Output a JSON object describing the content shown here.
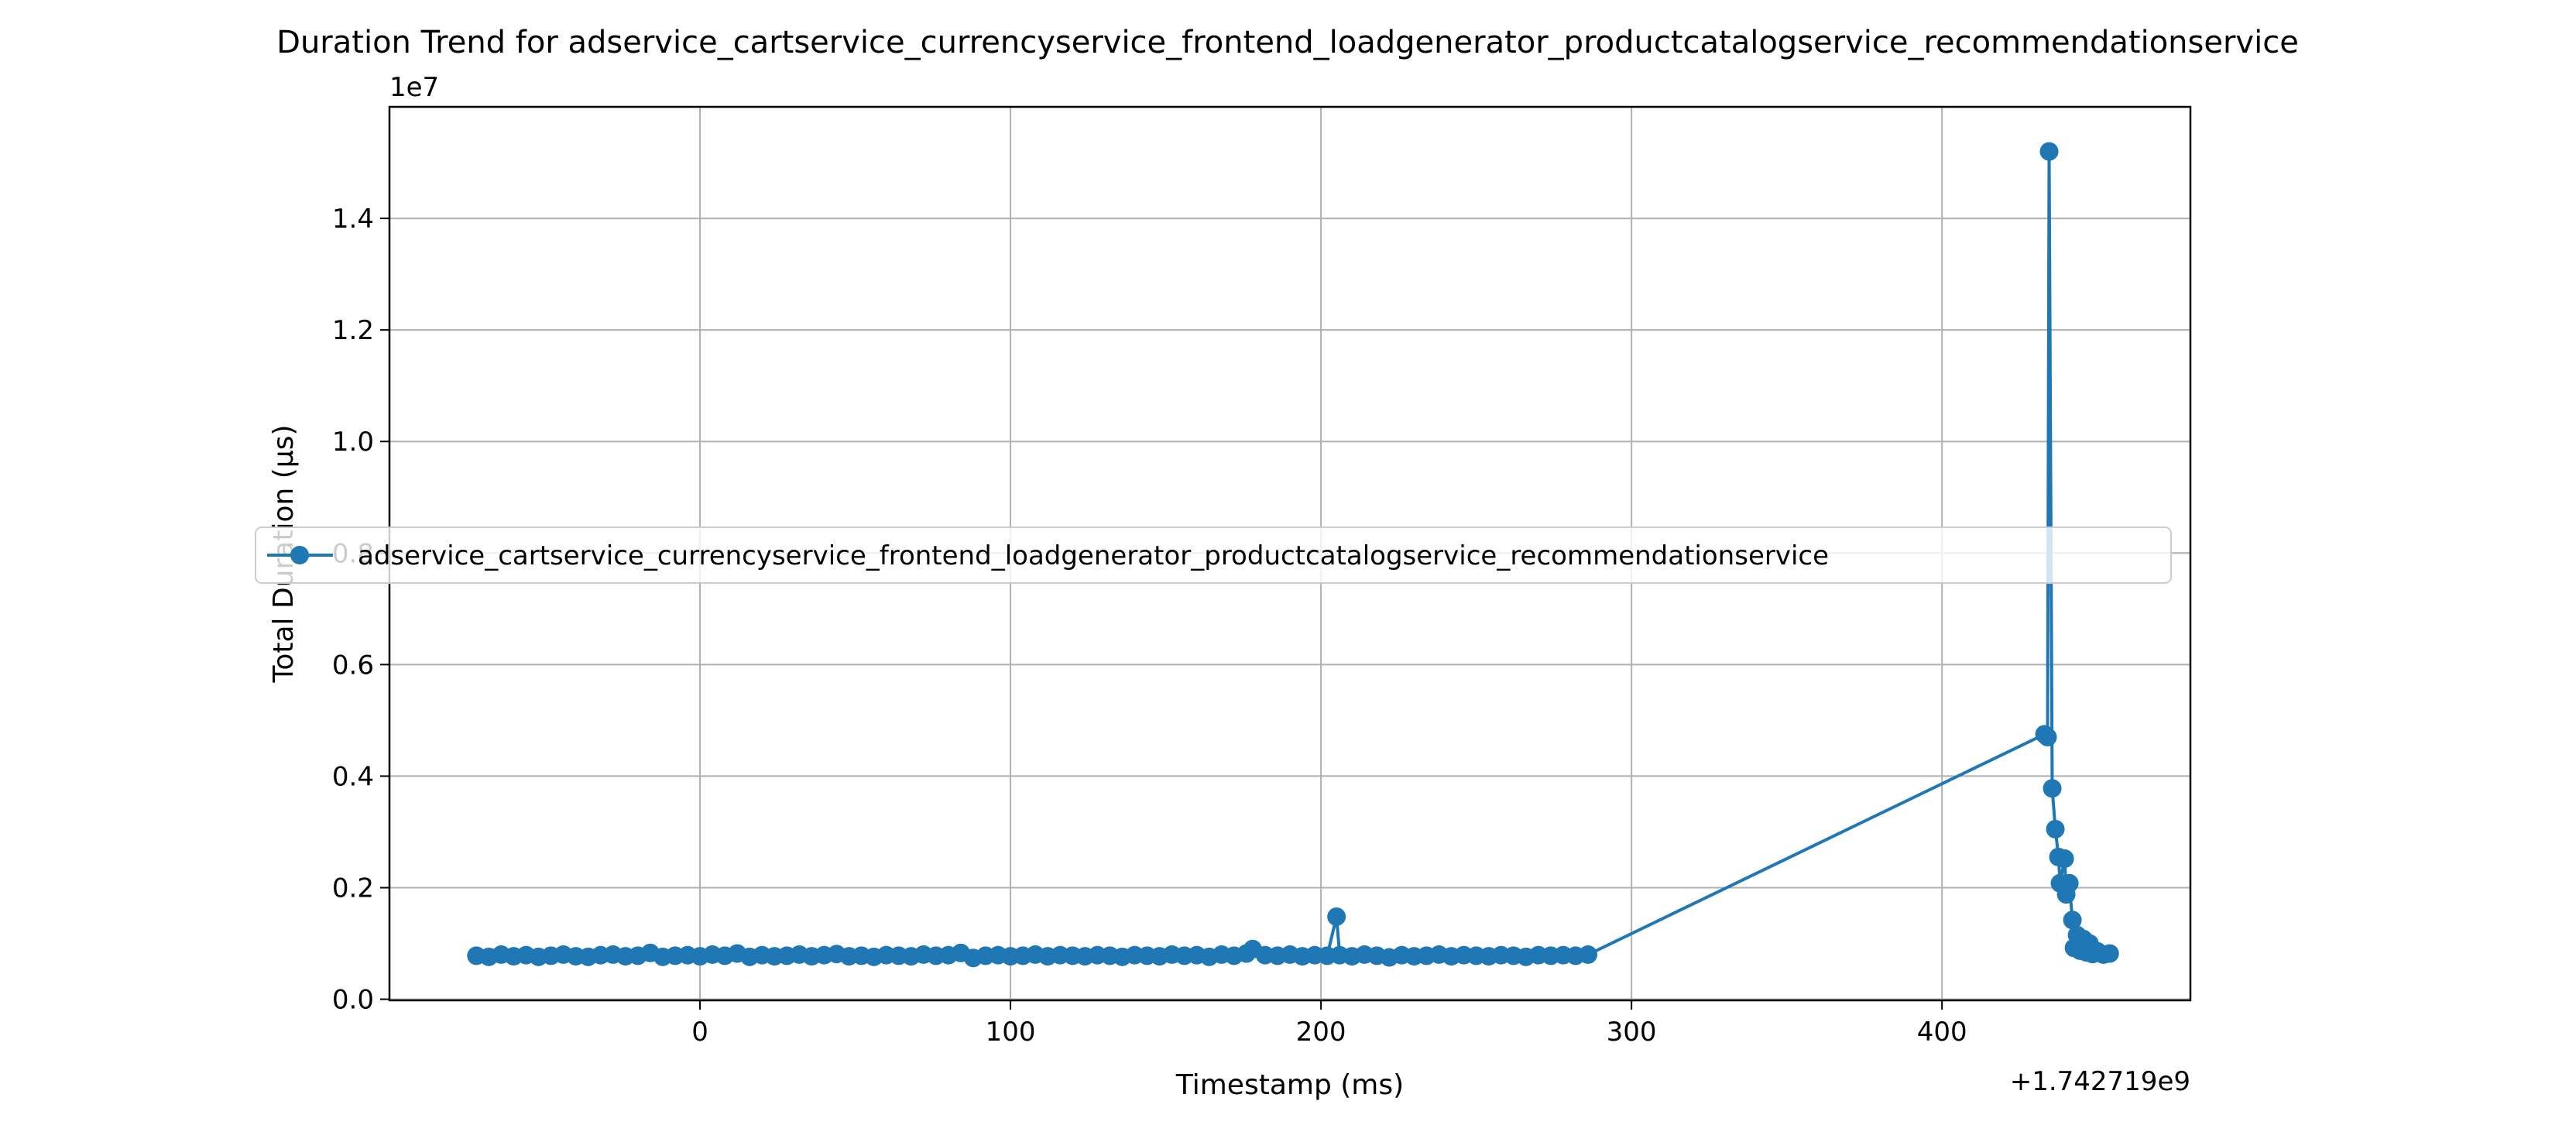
{
  "chart_data": {
    "type": "line",
    "title": "Duration Trend for adservice_cartservice_currencyservice_frontend_loadgenerator_productcatalogservice_recommendationservice",
    "xlabel": "Timestamp (ms)",
    "ylabel": "Total Duration (µs)",
    "y_scale_label": "1e7",
    "x_offset_label": "+1.742719e9",
    "x_ticks": [
      0,
      100,
      200,
      300,
      400
    ],
    "x_tick_labels": [
      "0",
      "100",
      "200",
      "300",
      "400"
    ],
    "y_ticks": [
      0,
      2000000,
      4000000,
      6000000,
      8000000,
      10000000,
      12000000,
      14000000
    ],
    "y_tick_labels": [
      "0.0",
      "0.2",
      "0.4",
      "0.6",
      "0.8",
      "1.0",
      "1.2",
      "1.4"
    ],
    "xlim": [
      -100,
      480
    ],
    "ylim": [
      -20000,
      16000000
    ],
    "grid": true,
    "legend_position": "center-left",
    "color": "#1f77b4",
    "series": [
      {
        "name": "adservice_cartservice_currencyservice_frontend_loadgenerator_productcatalogservice_recommendationservice",
        "points": [
          [
            -72,
            780000
          ],
          [
            -68,
            760000
          ],
          [
            -64,
            800000
          ],
          [
            -60,
            770000
          ],
          [
            -56,
            790000
          ],
          [
            -52,
            760000
          ],
          [
            -48,
            780000
          ],
          [
            -44,
            800000
          ],
          [
            -40,
            770000
          ],
          [
            -36,
            760000
          ],
          [
            -32,
            790000
          ],
          [
            -28,
            800000
          ],
          [
            -24,
            770000
          ],
          [
            -20,
            780000
          ],
          [
            -16,
            830000
          ],
          [
            -12,
            760000
          ],
          [
            -8,
            780000
          ],
          [
            -4,
            790000
          ],
          [
            0,
            770000
          ],
          [
            4,
            800000
          ],
          [
            8,
            780000
          ],
          [
            12,
            820000
          ],
          [
            16,
            760000
          ],
          [
            20,
            790000
          ],
          [
            24,
            770000
          ],
          [
            28,
            780000
          ],
          [
            32,
            800000
          ],
          [
            36,
            770000
          ],
          [
            40,
            790000
          ],
          [
            44,
            810000
          ],
          [
            48,
            770000
          ],
          [
            52,
            780000
          ],
          [
            56,
            760000
          ],
          [
            60,
            790000
          ],
          [
            64,
            780000
          ],
          [
            68,
            770000
          ],
          [
            72,
            800000
          ],
          [
            76,
            780000
          ],
          [
            80,
            790000
          ],
          [
            84,
            830000
          ],
          [
            88,
            740000
          ],
          [
            92,
            780000
          ],
          [
            96,
            790000
          ],
          [
            100,
            770000
          ],
          [
            104,
            780000
          ],
          [
            108,
            800000
          ],
          [
            112,
            770000
          ],
          [
            116,
            790000
          ],
          [
            120,
            780000
          ],
          [
            124,
            770000
          ],
          [
            128,
            790000
          ],
          [
            132,
            780000
          ],
          [
            136,
            760000
          ],
          [
            140,
            790000
          ],
          [
            144,
            780000
          ],
          [
            148,
            770000
          ],
          [
            152,
            800000
          ],
          [
            156,
            780000
          ],
          [
            160,
            790000
          ],
          [
            164,
            760000
          ],
          [
            168,
            800000
          ],
          [
            172,
            780000
          ],
          [
            176,
            820000
          ],
          [
            178,
            900000
          ],
          [
            182,
            790000
          ],
          [
            186,
            780000
          ],
          [
            190,
            800000
          ],
          [
            194,
            770000
          ],
          [
            198,
            790000
          ],
          [
            202,
            780000
          ],
          [
            205,
            1480000
          ],
          [
            206,
            790000
          ],
          [
            210,
            770000
          ],
          [
            214,
            800000
          ],
          [
            218,
            780000
          ],
          [
            222,
            750000
          ],
          [
            226,
            790000
          ],
          [
            230,
            770000
          ],
          [
            234,
            780000
          ],
          [
            238,
            800000
          ],
          [
            242,
            770000
          ],
          [
            246,
            790000
          ],
          [
            250,
            780000
          ],
          [
            254,
            770000
          ],
          [
            258,
            790000
          ],
          [
            262,
            780000
          ],
          [
            266,
            760000
          ],
          [
            270,
            790000
          ],
          [
            274,
            780000
          ],
          [
            278,
            790000
          ],
          [
            282,
            780000
          ],
          [
            286,
            800000
          ],
          [
            433,
            4750000
          ],
          [
            434,
            4700000
          ],
          [
            434.5,
            15200000
          ],
          [
            435.5,
            3780000
          ],
          [
            436.5,
            3050000
          ],
          [
            437.5,
            2550000
          ],
          [
            438,
            2080000
          ],
          [
            439.5,
            2520000
          ],
          [
            440,
            1880000
          ],
          [
            441,
            2080000
          ],
          [
            442,
            1420000
          ],
          [
            442.5,
            920000
          ],
          [
            443.5,
            1150000
          ],
          [
            444.5,
            870000
          ],
          [
            445.5,
            1080000
          ],
          [
            446.5,
            840000
          ],
          [
            447.5,
            1000000
          ],
          [
            448.5,
            810000
          ],
          [
            450,
            860000
          ],
          [
            452,
            800000
          ],
          [
            454,
            820000
          ]
        ]
      }
    ]
  }
}
